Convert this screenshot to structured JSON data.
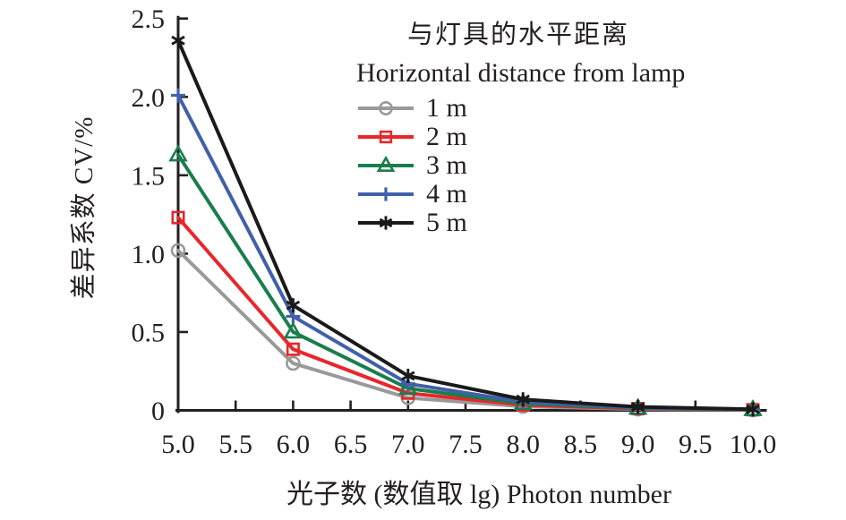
{
  "chart_data": {
    "type": "line",
    "legend_title_zh": "与灯具的水平距离",
    "legend_title_en": "Horizontal distance from lamp",
    "xlabel": "光子数 (数值取 lg) Photon number",
    "ylabel": "差异系数 CV/%",
    "x": [
      5.0,
      6.0,
      7.0,
      8.0,
      9.0,
      10.0
    ],
    "xlim": [
      5.0,
      10.0
    ],
    "ylim": [
      0,
      2.5
    ],
    "xticks": [
      "5.0",
      "5.5",
      "6.0",
      "6.5",
      "7.0",
      "7.5",
      "8.0",
      "8.5",
      "9.0",
      "9.5",
      "10.0"
    ],
    "yticks": [
      "0",
      "0.5",
      "1.0",
      "1.5",
      "2.0",
      "2.5"
    ],
    "grid": false,
    "legend_position": "inside upper right",
    "axis_color": "#231f20",
    "text_color": "#231f20",
    "series": [
      {
        "name": "1 m",
        "marker": "circle",
        "color": "#999999",
        "values": [
          1.02,
          0.3,
          0.08,
          0.025,
          0.008,
          0.003
        ]
      },
      {
        "name": "2 m",
        "marker": "square",
        "color": "#e8262b",
        "values": [
          1.23,
          0.39,
          0.11,
          0.034,
          0.011,
          0.004
        ]
      },
      {
        "name": "3 m",
        "marker": "triangle",
        "color": "#1a7d4d",
        "values": [
          1.63,
          0.5,
          0.14,
          0.044,
          0.014,
          0.005
        ]
      },
      {
        "name": "4 m",
        "marker": "plus",
        "color": "#4060aa",
        "values": [
          2.01,
          0.6,
          0.17,
          0.054,
          0.017,
          0.006
        ]
      },
      {
        "name": "5 m",
        "marker": "asterisk",
        "color": "#1a1a1a",
        "values": [
          2.36,
          0.67,
          0.22,
          0.07,
          0.022,
          0.007
        ]
      }
    ]
  }
}
